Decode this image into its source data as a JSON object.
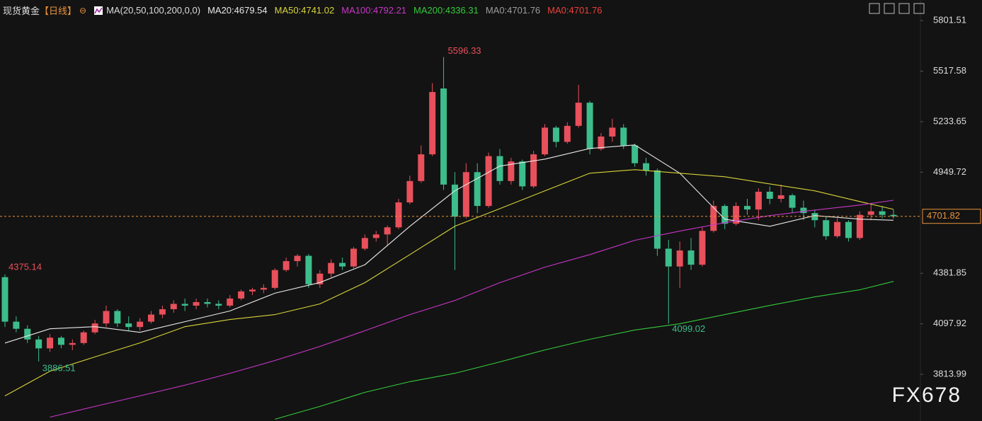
{
  "chart_data": {
    "type": "candlestick",
    "title": "现货黄金",
    "period": "【日线】",
    "indicator": "MA(20,50,100,200,0,0)",
    "up_color": "#e8505b",
    "down_color": "#3dbd8c",
    "ylim": [
      3552,
      5917
    ],
    "yticks": [
      3813.99,
      4097.92,
      4381.85,
      4949.72,
      5233.65,
      5517.58,
      5801.51
    ],
    "last_price_color": "#e8923a",
    "open": [
      4360,
      4110,
      4070,
      4010,
      3960,
      4020,
      3980,
      3990,
      4050,
      4100,
      4170,
      4100,
      4080,
      4110,
      4150,
      4180,
      4210,
      4200,
      4220,
      4210,
      4200,
      4240,
      4280,
      4290,
      4300,
      4400,
      4450,
      4480,
      4320,
      4380,
      4440,
      4420,
      4520,
      4580,
      4600,
      4640,
      4780,
      4900,
      5050,
      5420,
      4880,
      4700,
      4950,
      4760,
      5040,
      4900,
      5010,
      4870,
      5050,
      5200,
      5120,
      5210,
      5340,
      5080,
      5150,
      5200,
      5100,
      5000,
      4960,
      4520,
      4420,
      4510,
      4430,
      4620,
      4760,
      4660,
      4760,
      4740,
      4840,
      4800,
      4820,
      4750,
      4720,
      4680,
      4590,
      4670,
      4580,
      4710,
      4730,
      4710
    ],
    "high": [
      4375.14,
      4140,
      4090,
      4030,
      4040,
      4030,
      4010,
      4060,
      4120,
      4200,
      4180,
      4140,
      4130,
      4170,
      4200,
      4230,
      4240,
      4240,
      4240,
      4230,
      4260,
      4290,
      4300,
      4320,
      4410,
      4470,
      4490,
      4490,
      4400,
      4460,
      4470,
      4530,
      4600,
      4620,
      4650,
      4800,
      4930,
      5100,
      5450,
      5596.33,
      4950,
      5000,
      5000,
      5060,
      5080,
      5030,
      5020,
      5070,
      5220,
      5210,
      5230,
      5440,
      5350,
      5170,
      5250,
      5220,
      5110,
      5030,
      4970,
      4570,
      4560,
      4580,
      4640,
      4790,
      4770,
      4780,
      4800,
      4860,
      4870,
      4880,
      4830,
      4790,
      4740,
      4700,
      4690,
      4680,
      4730,
      4770,
      4760,
      4740
    ],
    "low": [
      4080,
      4050,
      3990,
      3886.51,
      3940,
      3960,
      3950,
      3980,
      4040,
      4080,
      4080,
      4060,
      4060,
      4100,
      4130,
      4160,
      4170,
      4180,
      4190,
      4180,
      4190,
      4230,
      4260,
      4270,
      4290,
      4390,
      4420,
      4300,
      4300,
      4360,
      4400,
      4410,
      4510,
      4560,
      4540,
      4630,
      4770,
      4890,
      5040,
      4850,
      4400,
      4690,
      4720,
      4750,
      4880,
      4880,
      4850,
      4860,
      5040,
      5090,
      5110,
      5200,
      5050,
      5070,
      5120,
      5080,
      4980,
      4930,
      4480,
      4099.02,
      4300,
      4400,
      4420,
      4610,
      4630,
      4650,
      4710,
      4680,
      4770,
      4780,
      4720,
      4680,
      4640,
      4570,
      4580,
      4560,
      4570,
      4680,
      4690,
      4690
    ],
    "close": [
      4110,
      4070,
      4010,
      3960,
      4020,
      3980,
      3990,
      4050,
      4100,
      4170,
      4100,
      4080,
      4110,
      4150,
      4180,
      4210,
      4200,
      4220,
      4210,
      4200,
      4240,
      4280,
      4290,
      4300,
      4400,
      4450,
      4480,
      4320,
      4380,
      4440,
      4420,
      4520,
      4580,
      4600,
      4640,
      4780,
      4900,
      5050,
      5400,
      4880,
      4700,
      4950,
      4760,
      5040,
      4900,
      5010,
      4870,
      5050,
      5200,
      5120,
      5210,
      5340,
      5080,
      5150,
      5200,
      5100,
      5000,
      4960,
      4520,
      4420,
      4510,
      4430,
      4620,
      4760,
      4660,
      4760,
      4740,
      4840,
      4800,
      4820,
      4750,
      4720,
      4680,
      4590,
      4670,
      4580,
      4710,
      4730,
      4710,
      4701.82
    ],
    "series": [
      {
        "name": "MA20",
        "label": "MA20:4679.54",
        "color": "#e8e8e8",
        "x": [
          0,
          4,
          8,
          12,
          16,
          20,
          24,
          28,
          32,
          36,
          40,
          44,
          48,
          52,
          56,
          60,
          64,
          68,
          72,
          76,
          79
        ],
        "values": [
          3990,
          4070,
          4082,
          4050,
          4110,
          4170,
          4270,
          4330,
          4430,
          4646,
          4845,
          4984,
          5023,
          5083,
          5103,
          4944,
          4686,
          4646,
          4706,
          4686,
          4679.54
        ]
      },
      {
        "name": "MA50",
        "label": "MA50:4741.02",
        "color": "#d8d43a",
        "x": [
          0,
          4,
          8,
          12,
          16,
          20,
          24,
          28,
          32,
          36,
          40,
          44,
          48,
          52,
          56,
          60,
          64,
          68,
          72,
          76,
          79
        ],
        "values": [
          3693,
          3832,
          3912,
          3991,
          4082,
          4122,
          4150,
          4210,
          4329,
          4487,
          4646,
          4745,
          4845,
          4944,
          4964,
          4944,
          4924,
          4884,
          4845,
          4785,
          4741.02
        ]
      },
      {
        "name": "MA100",
        "label": "MA100:4792.21",
        "color": "#c836c8",
        "x": [
          0,
          4,
          8,
          12,
          16,
          20,
          24,
          28,
          32,
          36,
          40,
          44,
          48,
          52,
          56,
          60,
          64,
          68,
          72,
          76,
          79
        ],
        "values": [
          null,
          3574,
          3634,
          3693,
          3753,
          3820,
          3892,
          3971,
          4059,
          4150,
          4229,
          4329,
          4416,
          4487,
          4567,
          4619,
          4666,
          4706,
          4737,
          4765,
          4792.21
        ]
      },
      {
        "name": "MA200",
        "label": "MA200:4336.31",
        "color": "#34c93c",
        "x": [
          0,
          4,
          8,
          12,
          16,
          20,
          24,
          28,
          32,
          36,
          40,
          44,
          48,
          52,
          56,
          60,
          64,
          68,
          72,
          76,
          79
        ],
        "values": [
          null,
          null,
          null,
          null,
          null,
          null,
          3562,
          3634,
          3713,
          3773,
          3820,
          3884,
          3951,
          4011,
          4063,
          4098,
          4150,
          4201,
          4249,
          4289,
          4336.31
        ]
      }
    ],
    "extra_labels": [
      {
        "label": "MA0:4701.76",
        "color": "#9c9c9c"
      },
      {
        "label": "MA0:4701.76",
        "color": "#e8413c"
      }
    ],
    "watermark": "FX678"
  }
}
